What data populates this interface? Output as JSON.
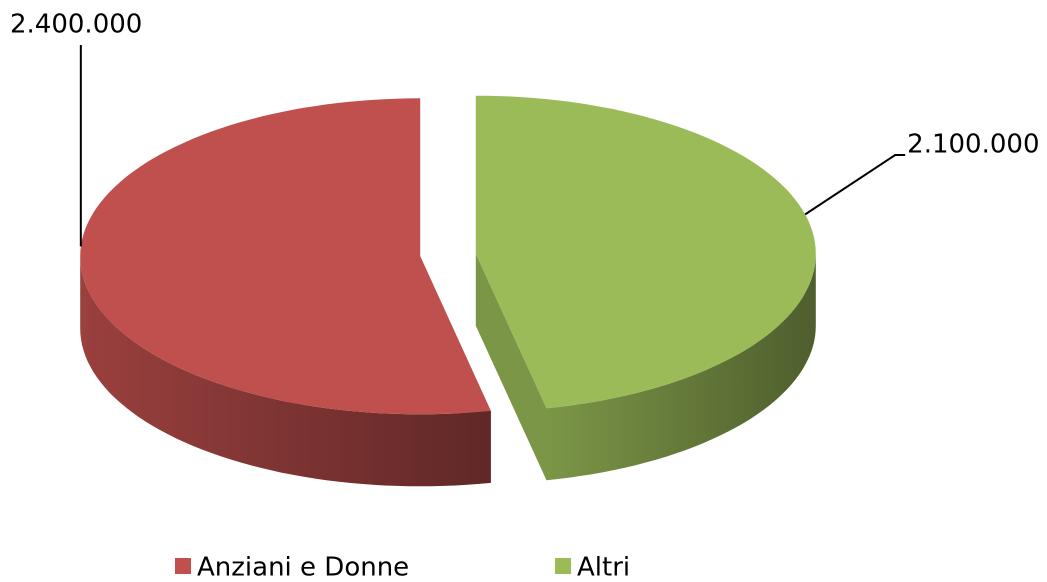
{
  "chart_data": {
    "type": "pie3d",
    "categories": [
      "Anziani e Donne",
      "Altri"
    ],
    "values": [
      2400000,
      2100000
    ],
    "value_labels": [
      "2.400.000",
      "2.100.000"
    ],
    "colors": [
      "#c0504d",
      "#9bbb59"
    ],
    "legend": "bottom"
  }
}
